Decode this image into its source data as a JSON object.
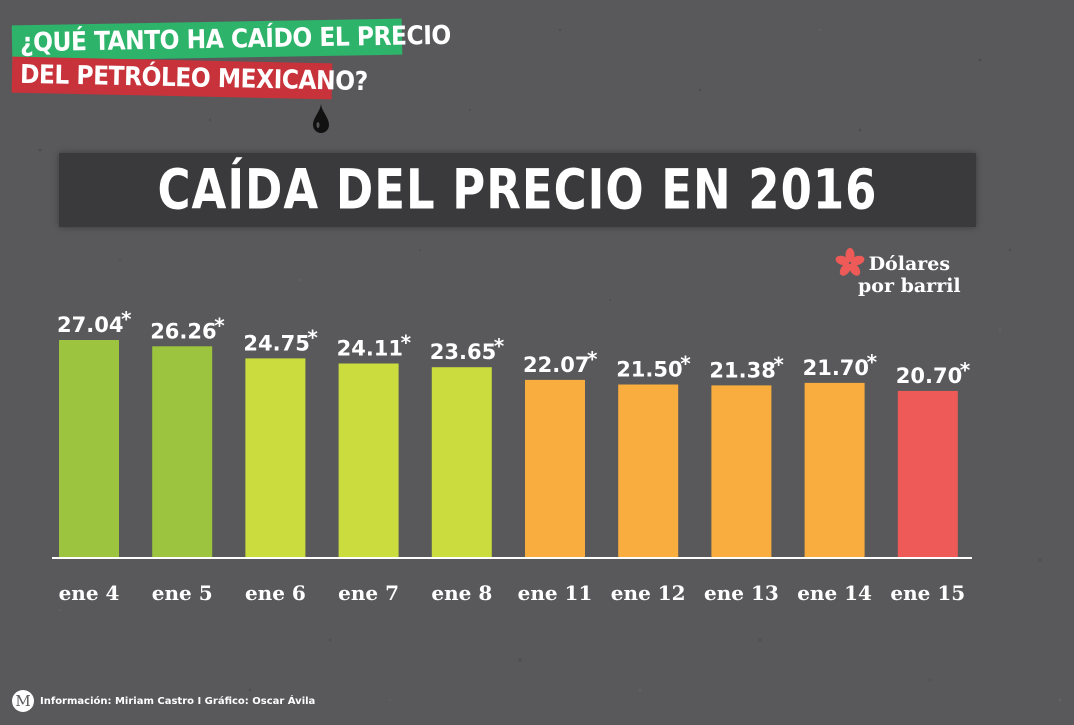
{
  "headline": {
    "line1": "¿QUÉ TANTO HA CAÍDO EL PRECIO",
    "line2": "DEL PETRÓLEO MEXICANO?"
  },
  "colors": {
    "background": "#59595b",
    "title_bar": "#3a3a3c",
    "headline_green": "#2db36a",
    "headline_red": "#c8323a",
    "bar_dark_green": "#9cc43f",
    "bar_lime": "#cadc3e",
    "bar_orange": "#f9ad3e",
    "bar_red": "#ee5a57",
    "asterisk": "#ee5a57"
  },
  "icons": {
    "drop": "oil-drop-icon",
    "asterisk": "asterisk-icon",
    "logo": "milenio-logo"
  },
  "logo_letter": "M",
  "legend_note": {
    "line1": "Dólares",
    "line2": "por barril"
  },
  "footer": {
    "credits": "Información:  Miriam Castro I Gráfico: Oscar Ávila"
  },
  "chart_data": {
    "type": "bar",
    "title": "CAÍDA DEL PRECIO EN 2016",
    "categories": [
      "ene 4",
      "ene 5",
      "ene 6",
      "ene 7",
      "ene 8",
      "ene 11",
      "ene 12",
      "ene 13",
      "ene 14",
      "ene 15"
    ],
    "values": [
      27.04,
      26.26,
      24.75,
      24.11,
      23.65,
      22.07,
      21.5,
      21.38,
      21.7,
      20.7
    ],
    "value_labels": [
      "27.04",
      "26.26",
      "24.75",
      "24.11",
      "23.65",
      "22.07",
      "21.50",
      "21.38",
      "21.70",
      "20.70"
    ],
    "value_suffix": "*",
    "bar_colors": [
      "#9cc43f",
      "#9cc43f",
      "#cadc3e",
      "#cadc3e",
      "#cadc3e",
      "#f9ad3e",
      "#f9ad3e",
      "#f9ad3e",
      "#f9ad3e",
      "#ee5a57"
    ],
    "ylim": [
      0,
      27.04
    ],
    "xlabel": "",
    "ylabel": "",
    "grid": false,
    "legend": "top-right"
  }
}
